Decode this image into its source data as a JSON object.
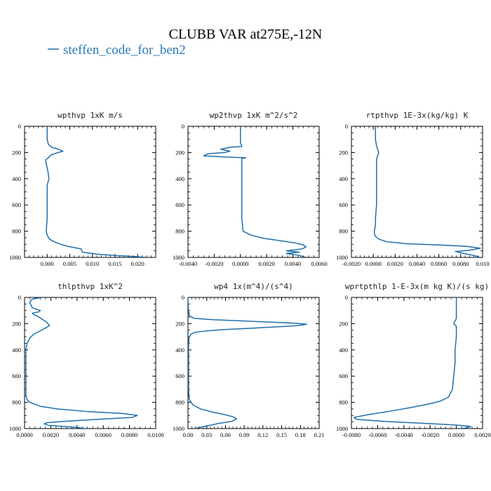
{
  "figure": {
    "title": "CLUBB VAR at275E,-12N",
    "legend": {
      "label": "steffen_code_for_ben2",
      "color": "#2a7ab8"
    },
    "line_color": "#1f6fab"
  },
  "chart_data": [
    {
      "type": "line",
      "title": "wpthvp  1xK m/s",
      "xlim": [
        -0.005,
        0.024
      ],
      "ylim": [
        1000,
        0
      ],
      "x_ticks": [
        0.0,
        0.005,
        0.01,
        0.015,
        0.02
      ],
      "x_tick_labels": [
        "0.000",
        "0.005",
        "0.010",
        "0.015",
        "0.020"
      ],
      "y_ticks": [
        0,
        200,
        400,
        600,
        800,
        1000
      ],
      "y_tick_labels": [
        "0",
        "200",
        "400",
        "600",
        "800",
        "1000"
      ],
      "series": [
        {
          "x": [
            0.0,
            0.0,
            0.0,
            0.0003,
            0.001,
            0.0025,
            0.0035,
            0.002,
            0.0008,
            0.0003,
            -0.0003,
            -0.0003,
            -0.0001,
            0.0002,
            0.0004,
            0.0,
            0.0,
            0.0,
            0.0,
            -0.0002,
            0.0,
            0.0005,
            0.0015,
            0.003,
            0.0045,
            0.006,
            0.0075,
            0.0078,
            0.011,
            0.015,
            0.019,
            0.022
          ],
          "y": [
            0,
            50,
            100,
            140,
            160,
            175,
            190,
            205,
            220,
            240,
            255,
            275,
            300,
            350,
            400,
            450,
            500,
            600,
            700,
            800,
            830,
            860,
            880,
            900,
            915,
            925,
            935,
            960,
            975,
            985,
            992,
            1000
          ]
        }
      ]
    },
    {
      "type": "line",
      "title": "wp2thvp  1xK m^2/s^2",
      "xlim": [
        -0.004,
        0.006
      ],
      "ylim": [
        1000,
        0
      ],
      "x_ticks": [
        -0.004,
        -0.002,
        0.0,
        0.002,
        0.004,
        0.006
      ],
      "x_tick_labels": [
        "-0.0040",
        "-0.0020",
        "0.0000",
        "0.0020",
        "0.0040",
        "0.0060"
      ],
      "y_ticks": [
        0,
        200,
        400,
        600,
        800,
        1000
      ],
      "y_tick_labels": [
        "0",
        "200",
        "400",
        "600",
        "800",
        "1000"
      ],
      "series": [
        {
          "x": [
            0.0,
            0.0,
            0.0,
            0.0,
            0.0001,
            0.0001,
            -0.0008,
            -0.0015,
            -0.0008,
            -0.0012,
            -0.0025,
            -0.0028,
            -0.001,
            0.0004,
            0.0001,
            0.0001,
            0.0001,
            0.0001,
            0.0001,
            0.0001,
            0.0001,
            0.0001,
            0.0001,
            0.0002,
            0.0008,
            0.0018,
            0.0032,
            0.0042,
            0.0048,
            0.005,
            0.0047,
            0.0035,
            0.0045,
            0.0035,
            0.0045,
            0.005
          ],
          "y": [
            0,
            50,
            100,
            130,
            145,
            155,
            160,
            175,
            190,
            200,
            210,
            225,
            235,
            240,
            245,
            260,
            300,
            350,
            400,
            450,
            500,
            600,
            700,
            800,
            830,
            855,
            875,
            890,
            905,
            920,
            935,
            950,
            960,
            970,
            985,
            1000
          ]
        }
      ]
    },
    {
      "type": "line",
      "title": "rtpthvp  1E-3x(kg/kg) K",
      "xlim": [
        -0.002,
        0.01
      ],
      "ylim": [
        1000,
        0
      ],
      "x_ticks": [
        -0.002,
        0.0,
        0.002,
        0.004,
        0.006,
        0.008,
        0.01
      ],
      "x_tick_labels": [
        "-0.0020",
        "0.0000",
        "0.0020",
        "0.0040",
        "0.0060",
        "0.0080",
        "0.010"
      ],
      "y_ticks": [
        0,
        200,
        400,
        600,
        800,
        1000
      ],
      "y_tick_labels": [
        "0",
        "200",
        "400",
        "600",
        "800",
        "1000"
      ],
      "series": [
        {
          "x": [
            0.0002,
            0.0002,
            0.0002,
            0.0003,
            0.0005,
            0.0003,
            0.0003,
            0.0003,
            0.0003,
            0.0003,
            0.0002,
            0.0002,
            0.0001,
            0.0001,
            0.0002,
            0.0005,
            0.0012,
            0.003,
            0.006,
            0.0085,
            0.0098,
            0.0088,
            0.0075,
            0.0083,
            0.0092,
            0.0098
          ],
          "y": [
            0,
            50,
            100,
            150,
            200,
            250,
            300,
            400,
            500,
            600,
            700,
            750,
            800,
            820,
            840,
            860,
            880,
            895,
            905,
            915,
            930,
            945,
            955,
            970,
            985,
            1000
          ]
        }
      ]
    },
    {
      "type": "line",
      "title": "thlpthvp  1xK^2",
      "xlim": [
        0.0,
        0.01
      ],
      "ylim": [
        1000,
        0
      ],
      "x_ticks": [
        0.0,
        0.002,
        0.004,
        0.006,
        0.008,
        0.01
      ],
      "x_tick_labels": [
        "0.0000",
        "0.0020",
        "0.0040",
        "0.0060",
        "0.0080",
        "0.0100"
      ],
      "y_ticks": [
        0,
        200,
        400,
        600,
        800,
        1000
      ],
      "y_tick_labels": [
        "0",
        "200",
        "400",
        "600",
        "800",
        "1000"
      ],
      "series": [
        {
          "x": [
            0.0014,
            0.0007,
            0.0005,
            0.0004,
            0.0005,
            0.0006,
            0.0012,
            0.0011,
            0.0006,
            0.0007,
            0.0011,
            0.0014,
            0.0017,
            0.0019,
            0.0013,
            0.0007,
            0.0004,
            0.0002,
            0.0001,
            0.0001,
            0.0001,
            0.0001,
            0.0001,
            0.0002,
            0.0004,
            0.0012,
            0.0025,
            0.0048,
            0.0075,
            0.0086,
            0.0082,
            0.0055,
            0.003,
            0.0017,
            0.0015,
            0.0018,
            0.0038,
            0.0047
          ],
          "y": [
            0,
            10,
            20,
            40,
            60,
            80,
            100,
            110,
            120,
            130,
            150,
            170,
            190,
            215,
            250,
            280,
            310,
            350,
            400,
            500,
            600,
            700,
            750,
            780,
            800,
            830,
            850,
            870,
            885,
            900,
            915,
            930,
            945,
            955,
            965,
            975,
            990,
            1000
          ]
        }
      ]
    },
    {
      "type": "line",
      "title": "wp4  1x(m^4)/(s^4)",
      "xlim": [
        0.0,
        0.21
      ],
      "ylim": [
        1000,
        0
      ],
      "x_ticks": [
        0.0,
        0.03,
        0.06,
        0.09,
        0.12,
        0.15,
        0.18,
        0.21
      ],
      "x_tick_labels": [
        "0.00",
        "0.03",
        "0.06",
        "0.09",
        "0.12",
        "0.15",
        "0.18",
        "0.21"
      ],
      "y_ticks": [
        0,
        200,
        400,
        600,
        800,
        1000
      ],
      "y_tick_labels": [
        "0",
        "200",
        "400",
        "600",
        "800",
        "1000"
      ],
      "series": [
        {
          "x": [
            0.0,
            0.0,
            0.001,
            0.0015,
            0.002,
            0.01,
            0.04,
            0.09,
            0.14,
            0.175,
            0.19,
            0.175,
            0.14,
            0.1,
            0.06,
            0.03,
            0.012,
            0.005,
            0.002,
            0.001,
            0.001,
            0.001,
            0.001,
            0.001,
            0.002,
            0.008,
            0.02,
            0.04,
            0.06,
            0.072,
            0.078,
            0.07,
            0.05,
            0.035,
            0.02,
            0.01
          ],
          "y": [
            0,
            50,
            100,
            120,
            140,
            160,
            170,
            180,
            190,
            198,
            205,
            215,
            225,
            235,
            245,
            255,
            265,
            280,
            300,
            350,
            400,
            500,
            600,
            700,
            780,
            820,
            850,
            875,
            895,
            910,
            925,
            945,
            960,
            975,
            990,
            1000
          ]
        }
      ]
    },
    {
      "type": "line",
      "title": "wprtpthlp  1-E-3x(m kg K)/(s kg)",
      "xlim": [
        -0.008,
        0.002
      ],
      "ylim": [
        1000,
        0
      ],
      "x_ticks": [
        -0.008,
        -0.006,
        -0.004,
        -0.002,
        0.0,
        0.002
      ],
      "x_tick_labels": [
        "-0.0080",
        "-0.0060",
        "-0.0040",
        "-0.0020",
        "0.0000",
        "0.0020"
      ],
      "y_ticks": [
        0,
        200,
        400,
        600,
        800,
        1000
      ],
      "y_tick_labels": [
        "0",
        "200",
        "400",
        "600",
        "800",
        "1000"
      ],
      "series": [
        {
          "x": [
            0.0,
            0.0,
            0.0,
            -0.0001,
            -0.0002,
            0.0,
            0.0,
            0.0,
            -0.0001,
            -0.0001,
            -0.0002,
            -0.0003,
            -0.0006,
            -0.0012,
            -0.0022,
            -0.0035,
            -0.0052,
            -0.0068,
            -0.0078,
            -0.0076,
            -0.0055,
            -0.0025,
            -0.0005,
            0.0008,
            0.0011,
            0.0007,
            0.0003
          ],
          "y": [
            0,
            100,
            160,
            180,
            200,
            220,
            260,
            300,
            400,
            500,
            600,
            700,
            760,
            790,
            815,
            840,
            870,
            895,
            915,
            930,
            945,
            960,
            970,
            980,
            985,
            995,
            1000
          ]
        }
      ]
    }
  ]
}
